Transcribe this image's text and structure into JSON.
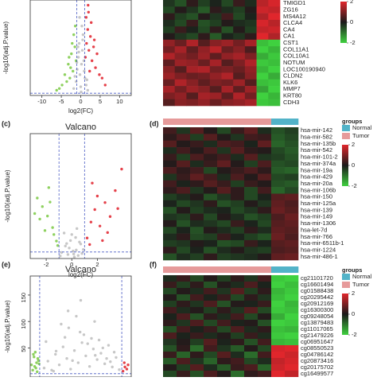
{
  "chart_data": [
    {
      "type": "volcano",
      "xlabel": "log2(FC)",
      "ylabel": "-log10(adj.P.value)",
      "xlim": [
        -13,
        13
      ],
      "xticks": [
        -10,
        -5,
        0,
        5,
        10
      ],
      "ylim": [
        0,
        55
      ],
      "vlines": [
        -1,
        1
      ],
      "hline": 1.3,
      "series": [
        {
          "color": "#bdbdbd",
          "x": [
            -1.8,
            -1.2,
            -0.9,
            -0.6,
            -0.4,
            -0.2,
            0,
            0.2,
            0.4,
            0.6,
            0.8,
            1.1,
            1.4,
            1.8,
            -1.5,
            -0.7,
            0.3,
            0.9,
            -0.3,
            0.5,
            1.6,
            -1.0,
            0.1,
            -0.5
          ],
          "values": [
            4,
            8,
            15,
            22,
            30,
            12,
            5,
            18,
            26,
            35,
            20,
            10,
            6,
            3,
            11,
            28,
            40,
            14,
            45,
            32,
            9,
            19,
            2,
            25
          ]
        },
        {
          "color": "#7ac943",
          "x": [
            -1.2,
            -1.5,
            -2.0,
            -2.4,
            -2.8,
            -3.2,
            -3.6,
            -4.1,
            -4.8,
            -5.5,
            -1.8,
            -2.2,
            -3.0,
            -1.4,
            -2.6,
            -6.2
          ],
          "values": [
            20,
            28,
            14,
            24,
            10,
            18,
            8,
            12,
            6,
            4,
            35,
            30,
            22,
            40,
            16,
            3
          ]
        },
        {
          "color": "#e0202a",
          "x": [
            1.2,
            1.5,
            1.8,
            2.1,
            2.5,
            2.9,
            3.3,
            3.8,
            4.2,
            4.8,
            5.5,
            6.3,
            1.4,
            2.0,
            2.7,
            3.5,
            1.9,
            2.3
          ],
          "values": [
            22,
            30,
            38,
            26,
            34,
            20,
            28,
            16,
            24,
            12,
            10,
            6,
            45,
            48,
            42,
            32,
            52,
            14
          ]
        }
      ]
    },
    {
      "type": "heatmap",
      "rows": [
        "TMIGD1",
        "ZG16",
        "MS4A12",
        "CLCA4",
        "CA4",
        "CA1",
        "CST1",
        "COL11A1",
        "COL10A1",
        "NOTUM",
        "LOC100190940",
        "CLDN2",
        "KLK6",
        "MMP7",
        "KRT80",
        "CDH3"
      ],
      "clim": [
        -2,
        2
      ],
      "colorbar_ticks": [
        2,
        0,
        -2
      ],
      "colorscale": [
        "#3fd13f",
        "#1a1a1a",
        "#e0262c"
      ],
      "values": [
        [
          -0.3,
          -0.6,
          0.2,
          -0.4,
          -0.1,
          -0.5,
          0.3,
          -0.2,
          1.6,
          1.9
        ],
        [
          -0.5,
          0.1,
          -0.3,
          -0.7,
          0.2,
          -0.2,
          -0.4,
          0.1,
          1.8,
          1.7
        ],
        [
          0.2,
          -0.4,
          -0.6,
          0.1,
          -0.3,
          0.4,
          -0.5,
          -0.1,
          1.5,
          2
        ],
        [
          -0.2,
          -0.5,
          0.3,
          -0.6,
          -0.4,
          0.1,
          -0.2,
          -0.3,
          1.9,
          1.6
        ],
        [
          -0.4,
          0.3,
          -0.1,
          -0.5,
          0.2,
          -0.6,
          0.1,
          -0.4,
          1.7,
          1.8
        ],
        [
          0.1,
          -0.3,
          -0.5,
          0.2,
          -0.7,
          -0.1,
          -0.3,
          0.2,
          2,
          1.5
        ],
        [
          1.2,
          0.8,
          1.5,
          0.6,
          1.1,
          1.3,
          0.9,
          1.4,
          -1.8,
          -2
        ],
        [
          0.9,
          1.4,
          0.7,
          1.2,
          1.6,
          0.8,
          1.1,
          0.5,
          -2,
          -1.7
        ],
        [
          1.5,
          1.1,
          0.9,
          1.3,
          0.7,
          1.2,
          1.4,
          1.0,
          -1.6,
          -1.9
        ],
        [
          0.7,
          1.3,
          1.2,
          0.8,
          1.4,
          0.6,
          1.0,
          1.5,
          -1.9,
          -1.8
        ],
        [
          1.1,
          0.6,
          1.4,
          1.5,
          0.9,
          1.0,
          0.8,
          1.2,
          -1.7,
          -2
        ],
        [
          1.3,
          1.0,
          0.8,
          0.9,
          1.2,
          1.5,
          0.6,
          1.1,
          -2,
          -1.6
        ],
        [
          0.8,
          1.5,
          1.1,
          0.7,
          1.0,
          0.9,
          1.3,
          0.6,
          -1.8,
          -1.9
        ],
        [
          1.4,
          0.9,
          1.3,
          1.1,
          0.6,
          1.4,
          0.7,
          1.3,
          -1.5,
          -2
        ],
        [
          1.0,
          1.2,
          0.6,
          1.4,
          1.3,
          0.7,
          1.5,
          0.9,
          -2,
          -1.7
        ],
        [
          0.6,
          1.1,
          1.0,
          1.2,
          0.8,
          1.1,
          1.2,
          1.4,
          -1.9,
          -1.8
        ]
      ]
    },
    {
      "type": "volcano",
      "panel": "(c)",
      "title": "Valcano",
      "xlabel": "log2(FC)",
      "ylabel": "-log10(adj.P.value)",
      "xlim": [
        -3.25,
        4.65
      ],
      "xticks": [
        -2,
        0,
        2
      ],
      "ylim": [
        0,
        25
      ],
      "vlines": [
        -1,
        1
      ],
      "hline": 1.3,
      "series": [
        {
          "color": "#bdbdbd",
          "x": [
            -0.8,
            -0.5,
            -0.3,
            -0.1,
            0.1,
            0.3,
            0.5,
            0.7,
            0.9,
            -0.6,
            0.2,
            0.6,
            -0.2,
            0.4,
            0.8,
            -0.9,
            0,
            0.35,
            -0.4,
            0.15
          ],
          "values": [
            1.2,
            2.5,
            0.8,
            3.6,
            1.5,
            4.2,
            0.6,
            2.9,
            1.8,
            5.1,
            0.3,
            3.3,
            2.1,
            6.0,
            1.0,
            0.5,
            4.8,
            1.7,
            3.0,
            0.9
          ]
        },
        {
          "color": "#7ac943",
          "x": [
            -1.2,
            -1.5,
            -1.9,
            -2.3,
            -2.7,
            -1.4,
            -1.7,
            -2.1,
            -2.5,
            -1.1,
            -1.8,
            -2.9
          ],
          "values": [
            3.5,
            6.2,
            8.5,
            10.4,
            12.1,
            4.8,
            11.3,
            5.6,
            7.9,
            2.6,
            14.2,
            9.0
          ]
        },
        {
          "color": "#e0202a",
          "x": [
            1.2,
            1.5,
            1.8,
            2.2,
            2.6,
            3.0,
            3.4,
            3.9,
            1.4,
            2.0,
            2.8,
            1.6,
            3.6,
            2.4
          ],
          "values": [
            4.1,
            7.3,
            9.8,
            6.5,
            11.2,
            8.4,
            13.6,
            17.9,
            2.8,
            12.5,
            5.2,
            15.1,
            10.0,
            3.6
          ]
        }
      ]
    },
    {
      "type": "heatmap",
      "panel": "(d)",
      "rows": [
        "hsa-mir-142",
        "hsa-mir-582",
        "hsa-mir-135b",
        "hsa-mir-542",
        "hsa-mir-101-2",
        "hsa-mir-374a",
        "hsa-mir-19a",
        "hsa-mir-429",
        "hsa-mir-20a",
        "hsa-mir-106b",
        "hsa-mir-150",
        "hsa-mir-125a",
        "hsa-mir-139",
        "hsa-mir-149",
        "hsa-mir-1306",
        "hsa-let-7d",
        "hsa-mir-766",
        "hsa-mir-6511b-1",
        "hsa-mir-1224",
        "hsa-mir-486-1"
      ],
      "clim": [
        -2,
        2
      ],
      "colorbar_ticks": [
        2,
        0,
        -2
      ],
      "colorscale": [
        "#3fd13f",
        "#1a1a1a",
        "#e0262c"
      ],
      "groups_title": "groups",
      "groups": [
        {
          "name": "Normal",
          "color": "#52b3c8"
        },
        {
          "name": "Tumor",
          "color": "#e69a9a"
        }
      ],
      "column_groups": [
        "Tumor",
        "Tumor",
        "Tumor",
        "Tumor",
        "Tumor",
        "Tumor",
        "Tumor",
        "Tumor",
        "Normal",
        "Normal"
      ],
      "values": [
        [
          0.4,
          -0.3,
          0.6,
          0.1,
          -0.5,
          0.3,
          0.7,
          -0.2,
          -0.6,
          -0.4
        ],
        [
          0.2,
          0.5,
          -0.4,
          0.6,
          0.1,
          -0.3,
          0.4,
          0.3,
          -0.7,
          -0.5
        ],
        [
          0.6,
          0.1,
          0.3,
          -0.2,
          0.5,
          0.4,
          -0.1,
          0.7,
          -0.8,
          -0.6
        ],
        [
          -0.2,
          0.4,
          0.1,
          0.5,
          -0.3,
          0.6,
          0.2,
          0.1,
          -0.5,
          -0.7
        ],
        [
          0.3,
          -0.4,
          0.5,
          0.2,
          0.4,
          -0.2,
          0.6,
          -0.3,
          -0.4,
          -0.6
        ],
        [
          0.1,
          0.6,
          -0.2,
          0.3,
          0.7,
          0.1,
          -0.4,
          0.5,
          -0.6,
          -0.5
        ],
        [
          0.5,
          0.2,
          0.4,
          -0.5,
          0.1,
          0.3,
          0.5,
          0.2,
          -0.7,
          -0.8
        ],
        [
          -0.3,
          0.3,
          0.7,
          0.4,
          -0.2,
          0.5,
          0.1,
          0.6,
          -0.5,
          -0.4
        ],
        [
          0.4,
          -0.1,
          0.2,
          0.6,
          0.3,
          -0.4,
          0.3,
          0.1,
          -0.6,
          -0.7
        ],
        [
          0.2,
          0.5,
          -0.3,
          0.1,
          0.6,
          0.2,
          -0.5,
          0.4,
          -0.8,
          -0.5
        ],
        [
          -0.4,
          -0.2,
          0.1,
          -0.6,
          -0.3,
          0.2,
          -0.5,
          -0.1,
          0.6,
          0.7
        ],
        [
          -0.1,
          -0.5,
          -0.3,
          0.2,
          -0.6,
          -0.4,
          0.1,
          -0.3,
          0.7,
          0.5
        ],
        [
          -0.6,
          0.1,
          -0.4,
          -0.2,
          -0.1,
          -0.5,
          -0.3,
          0.2,
          0.8,
          0.6
        ],
        [
          -0.3,
          -0.4,
          0.2,
          -0.5,
          0.1,
          -0.2,
          -0.6,
          -0.4,
          0.5,
          0.8
        ],
        [
          0.1,
          -0.6,
          -0.2,
          -0.3,
          -0.5,
          0.3,
          -0.1,
          -0.5,
          0.6,
          0.7
        ],
        [
          -0.5,
          -0.1,
          -0.6,
          0.1,
          -0.2,
          -0.4,
          0.2,
          -0.2,
          0.7,
          0.6
        ],
        [
          -0.2,
          0.2,
          -0.5,
          -0.4,
          0.3,
          -0.1,
          -0.4,
          -0.6,
          0.8,
          0.5
        ],
        [
          -0.4,
          -0.3,
          0.1,
          -0.1,
          -0.6,
          -0.5,
          0.3,
          -0.1,
          0.6,
          0.7
        ],
        [
          0.2,
          -0.5,
          -0.1,
          -0.6,
          -0.2,
          0.1,
          -0.3,
          -0.4,
          0.5,
          0.6
        ],
        [
          -0.6,
          -0.2,
          -0.4,
          0.2,
          -0.4,
          -0.3,
          -0.2,
          0.1,
          0.7,
          0.8
        ]
      ]
    },
    {
      "type": "volcano",
      "panel": "(e)",
      "title": "Valcano",
      "ylabel": "-log10(adj.P.value)",
      "xlim": [
        -8,
        8
      ],
      "ylim": [
        -5,
        186
      ],
      "yticks": [
        50,
        100,
        150
      ],
      "vlines": [
        -6.5,
        6.5
      ],
      "hline": 1.3,
      "series": [
        {
          "color": "#bdbdbd",
          "x": [
            -5.8,
            -5.2,
            -4.6,
            -4.0,
            -3.4,
            -2.8,
            -2.2,
            -1.6,
            -1.0,
            -0.4,
            0.2,
            0.8,
            1.4,
            2.0,
            2.6,
            3.2,
            3.8,
            4.4,
            5.0,
            5.6,
            6.1,
            -5.5,
            -3.9,
            -2.5,
            -1.3,
            -0.1,
            1.1,
            2.3,
            3.5,
            4.7,
            -4.3,
            -1.9,
            0.5,
            2.9,
            5.3,
            -3.1,
            -0.7,
            1.7,
            4.1,
            -2.0,
            0.0,
            2.2
          ],
          "values": [
            12,
            25,
            8,
            38,
            18,
            52,
            30,
            10,
            45,
            22,
            60,
            35,
            15,
            48,
            28,
            40,
            20,
            55,
            14,
            32,
            9,
            62,
            44,
            70,
            26,
            80,
            58,
            36,
            50,
            24,
            6,
            88,
            75,
            65,
            42,
            95,
            110,
            68,
            30,
            120,
            140,
            100
          ]
        },
        {
          "color": "#7ac943",
          "x": [
            -7.6,
            -7.3,
            -7.0,
            -6.8,
            -7.5,
            -7.1,
            -6.7,
            -7.8,
            -7.2,
            -6.9,
            -7.4,
            -6.6
          ],
          "values": [
            8,
            15,
            22,
            30,
            38,
            12,
            26,
            18,
            42,
            5,
            33,
            20
          ]
        },
        {
          "color": "#e0202a",
          "x": [
            6.7,
            7.0,
            7.3,
            6.9,
            7.5
          ],
          "values": [
            6,
            14,
            10,
            22,
            18
          ]
        }
      ]
    },
    {
      "type": "heatmap",
      "panel": "(f)",
      "rows": [
        "cg21101720",
        "cg16601494",
        "cg01588438",
        "cg20295442",
        "cg20912169",
        "cg16300300",
        "cg09248054",
        "cg13879483",
        "cg11017065",
        "cg21479226",
        "cg06951647",
        "cg08550523",
        "cg04786142",
        "cg20873416",
        "cg20175702",
        "cg16499577"
      ],
      "clim": [
        -2,
        2
      ],
      "colorbar_ticks": [
        2,
        0,
        -2
      ],
      "colorscale": [
        "#3fd13f",
        "#1a1a1a",
        "#e0262c"
      ],
      "groups_title": "groups",
      "groups": [
        {
          "name": "Normal",
          "color": "#52b3c8"
        },
        {
          "name": "Tumor",
          "color": "#e69a9a"
        }
      ],
      "column_groups": [
        "Tumor",
        "Tumor",
        "Tumor",
        "Tumor",
        "Tumor",
        "Tumor",
        "Tumor",
        "Tumor",
        "Normal",
        "Normal"
      ],
      "values": [
        [
          -0.2,
          0.3,
          -0.5,
          0.1,
          -0.4,
          0.2,
          -0.3,
          0.4,
          -1.9,
          -2
        ],
        [
          0.3,
          -0.4,
          0.2,
          -0.6,
          0.1,
          -0.2,
          0.5,
          -0.1,
          -2,
          -1.8
        ],
        [
          -0.5,
          0.1,
          -0.2,
          0.4,
          -0.3,
          0.6,
          -0.4,
          0.2,
          -1.7,
          -1.9
        ],
        [
          0.1,
          -0.6,
          0.4,
          -0.1,
          0.3,
          -0.5,
          0.2,
          -0.3,
          -1.8,
          -2
        ],
        [
          -0.4,
          0.2,
          -0.3,
          0.5,
          -0.6,
          0.1,
          -0.1,
          0.3,
          -2,
          -1.7
        ],
        [
          0.4,
          -0.2,
          0.1,
          -0.4,
          0.2,
          -0.3,
          0.6,
          -0.5,
          -1.9,
          -1.8
        ],
        [
          -0.1,
          0.5,
          -0.6,
          0.2,
          -0.2,
          0.4,
          -0.5,
          0.1,
          -1.6,
          -2
        ],
        [
          0.2,
          -0.3,
          0.5,
          -0.5,
          0.4,
          -0.1,
          0.1,
          -0.6,
          -2,
          -1.9
        ],
        [
          -0.6,
          0.4,
          -0.1,
          0.3,
          -0.5,
          0.5,
          -0.2,
          0.2,
          -1.8,
          -1.7
        ],
        [
          0.5,
          -0.1,
          0.3,
          -0.2,
          0.1,
          -0.4,
          0.3,
          -0.2,
          -1.9,
          -2
        ],
        [
          -0.3,
          0.1,
          -0.4,
          0.6,
          -0.1,
          0.2,
          -0.6,
          0.4,
          -1.7,
          -1.8
        ],
        [
          -0.6,
          0.2,
          -0.9,
          0.4,
          -0.3,
          -0.7,
          0.1,
          -0.5,
          1.9,
          2
        ],
        [
          0.3,
          -0.8,
          0.2,
          -0.5,
          0.6,
          -0.2,
          -0.9,
          0.4,
          2,
          1.8
        ],
        [
          -0.7,
          0.5,
          -0.3,
          -0.8,
          0.2,
          0.4,
          -0.5,
          -0.2,
          1.7,
          1.9
        ],
        [
          0.1,
          -0.4,
          0.6,
          -0.2,
          -0.7,
          0.3,
          0.5,
          -0.8,
          1.8,
          2
        ],
        [
          -0.5,
          0.3,
          -0.6,
          0.5,
          0.1,
          -0.9,
          0.2,
          0.4,
          2,
          1.7
        ]
      ]
    }
  ]
}
